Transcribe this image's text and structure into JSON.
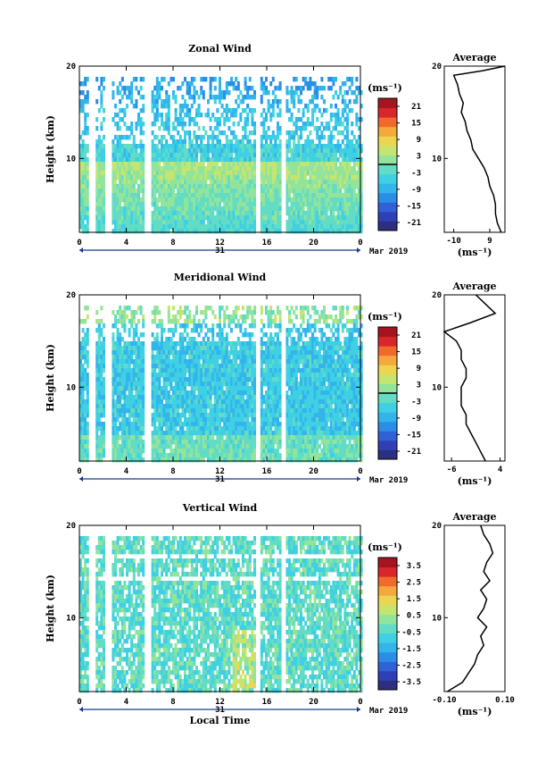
{
  "colors": {
    "scale": [
      "#2d2f7f",
      "#2f3fb5",
      "#2f62d6",
      "#2b8ee6",
      "#33b5ec",
      "#3fd0e3",
      "#62dcc4",
      "#93e49b",
      "#c4e56f",
      "#ecd651",
      "#f5a83c",
      "#f06a2b",
      "#d8262a",
      "#a4151f"
    ]
  },
  "chart_data": [
    {
      "type": "heatmap",
      "title": "Zonal Wind",
      "ylabel": "Height (km)",
      "xlabel": "",
      "x_ticks": [
        "0",
        "4",
        "8",
        "12",
        "16",
        "20",
        "0"
      ],
      "y_ticks": [
        "20",
        "10"
      ],
      "ylim": [
        2,
        20
      ],
      "xlim": [
        0,
        24
      ],
      "date_label": "31",
      "month_label": "Mar 2019",
      "colorbar": {
        "unit": "(ms⁻¹)",
        "labels": [
          "21",
          "15",
          "9",
          "3",
          "-3",
          "-9",
          "-15",
          "-21"
        ],
        "range": [
          -24,
          24
        ],
        "zero_line": 0
      },
      "average": {
        "title": "Average",
        "xlabel": "(ms⁻¹)",
        "x_ticks": [
          "-10",
          "9"
        ],
        "x_tick_values": [
          -10,
          9
        ],
        "xlim": [
          -15,
          17
        ],
        "y_ticks": [
          "20",
          "10"
        ],
        "heights": [
          2,
          3,
          4,
          5,
          6,
          7,
          8,
          9,
          10,
          11,
          12,
          13,
          14,
          15,
          16,
          17,
          18,
          19,
          19.5,
          20
        ],
        "values": [
          15,
          13,
          12,
          12,
          11,
          9,
          8,
          6,
          3,
          0,
          -1,
          -3,
          -4,
          -6,
          -5,
          -7,
          -8,
          -10,
          5,
          17
        ]
      }
    },
    {
      "type": "heatmap",
      "title": "Meridional Wind",
      "ylabel": "Height (km)",
      "xlabel": "",
      "x_ticks": [
        "0",
        "4",
        "8",
        "12",
        "16",
        "20",
        "0"
      ],
      "y_ticks": [
        "20",
        "10"
      ],
      "ylim": [
        2,
        20
      ],
      "xlim": [
        0,
        24
      ],
      "date_label": "31",
      "month_label": "Mar 2019",
      "colorbar": {
        "unit": "(ms⁻¹)",
        "labels": [
          "21",
          "15",
          "9",
          "3",
          "-3",
          "-9",
          "-15",
          "-21"
        ],
        "range": [
          -24,
          24
        ],
        "zero_line": 0
      },
      "average": {
        "title": "Average",
        "xlabel": "(ms⁻¹)",
        "x_ticks": [
          "-6",
          "4"
        ],
        "x_tick_values": [
          -6,
          4
        ],
        "xlim": [
          -7.5,
          5
        ],
        "y_ticks": [
          "20",
          "10"
        ],
        "heights": [
          2,
          3,
          4,
          5,
          6,
          7,
          8,
          9,
          10,
          11,
          12,
          13,
          14,
          15,
          16,
          17,
          18,
          19,
          20
        ],
        "values": [
          1,
          0,
          -1,
          -2,
          -3,
          -3,
          -4,
          -4,
          -4,
          -3,
          -3,
          -4,
          -4,
          -5,
          -7.5,
          -2,
          3,
          1,
          -1
        ]
      }
    },
    {
      "type": "heatmap",
      "title": "Vertical Wind",
      "ylabel": "Height (km)",
      "xlabel": "Local Time",
      "x_ticks": [
        "0",
        "4",
        "8",
        "12",
        "16",
        "20",
        "0"
      ],
      "y_ticks": [
        "20",
        "10"
      ],
      "ylim": [
        2,
        20
      ],
      "xlim": [
        0,
        24
      ],
      "date_label": "31",
      "month_label": "Mar 2019",
      "colorbar": {
        "unit": "(ms⁻¹)",
        "labels": [
          "3.5",
          "2.5",
          "1.5",
          "0.5",
          "-0.5",
          "-1.5",
          "-2.5",
          "-3.5"
        ],
        "range": [
          -4,
          4
        ],
        "zero_line": null
      },
      "average": {
        "title": "Average",
        "xlabel": "(ms⁻¹)",
        "x_ticks": [
          "-0.10",
          "0.10"
        ],
        "x_tick_values": [
          -0.1,
          0.1
        ],
        "xlim": [
          -0.1,
          0.1
        ],
        "y_ticks": [
          "20",
          "10"
        ],
        "heights": [
          2,
          3,
          4,
          5,
          6,
          7,
          8,
          9,
          10,
          11,
          12,
          13,
          14,
          15,
          16,
          17,
          18,
          19,
          20
        ],
        "values": [
          -0.09,
          -0.04,
          -0.02,
          0.0,
          0.01,
          0.03,
          0.02,
          0.04,
          0.01,
          0.03,
          0.04,
          0.02,
          0.05,
          0.03,
          0.04,
          0.06,
          0.05,
          0.03,
          0.02
        ]
      }
    }
  ]
}
